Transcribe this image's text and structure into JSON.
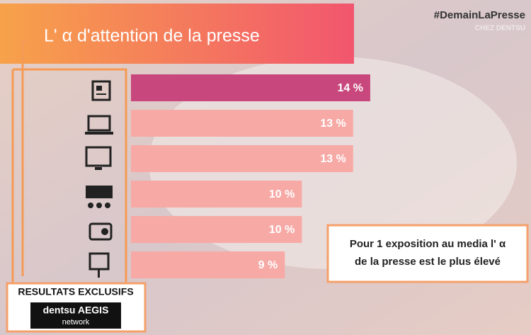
{
  "chart_data": {
    "type": "bar",
    "orientation": "horizontal",
    "title": "L' α d'attention de la presse",
    "hashtag": "#DemainLaPresse",
    "watermark": "CHEZ DENTSU",
    "categories": [
      null,
      null,
      null,
      null,
      null,
      null
    ],
    "values": [
      14,
      13,
      13,
      10,
      10,
      9
    ],
    "value_labels": [
      "14 %",
      "13 %",
      "13 %",
      "10 %",
      "10 %",
      "9 %"
    ],
    "colors": [
      "#c8477c",
      "#f7a9a5",
      "#f7a9a5",
      "#f7a9a5",
      "#f7a9a5",
      "#f7a9a5"
    ],
    "xlim": [
      0,
      14.5
    ],
    "annotation": [
      "Pour 1 exposition au media l' α",
      "de la presse est le plus élevé"
    ],
    "badge": {
      "title": "RESULTATS EXCLUSIFS",
      "logo": "dentsu AEGIS",
      "logo_sub": "network"
    }
  }
}
